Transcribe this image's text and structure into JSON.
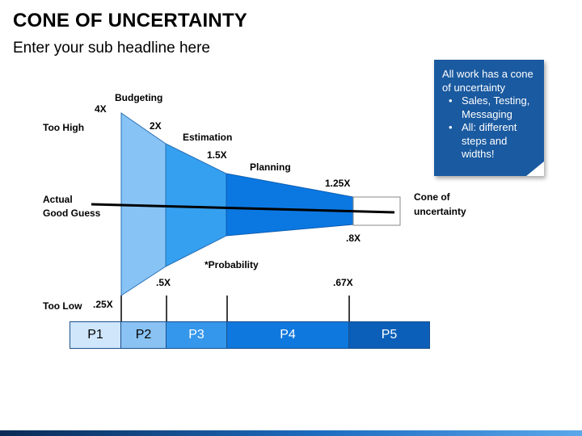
{
  "title": "CONE OF UNCERTAINTY",
  "subtitle": "Enter your sub headline here",
  "callout": {
    "intro": "All work has a cone of uncertainty",
    "bullets": [
      "Sales, Testing, Messaging",
      "All: different steps and widths!"
    ]
  },
  "labels": {
    "too_high": "Too High",
    "actual_line1": "Actual",
    "actual_line2": "Good Guess",
    "too_low": "Too Low",
    "budgeting": "Budgeting",
    "estimation": "Estimation",
    "planning": "Planning",
    "probability": "*Probability",
    "cone_line1": "Cone of",
    "cone_line2": "uncertainty"
  },
  "multipliers": {
    "m4x": "4X",
    "m2x": "2X",
    "m15x": "1.5X",
    "m125x": "1.25X",
    "m025x": ".25X",
    "m05x": ".5X",
    "m067x": ".67X",
    "m08x": ".8X"
  },
  "phases": [
    "P1",
    "P2",
    "P3",
    "P4",
    "P5"
  ],
  "colors": {
    "seg_budgeting": "#87c3f5",
    "seg_estimation": "#35a0f0",
    "seg_planning": "#0b78e2",
    "seg_final": "#ffffff",
    "callout_bg": "#1a5aa0",
    "phase_p1": "#cfe6fb",
    "phase_p2": "#89c2f3",
    "phase_p3": "#3597ec",
    "phase_p4": "#0f78de",
    "phase_p5": "#0b5fb9"
  }
}
